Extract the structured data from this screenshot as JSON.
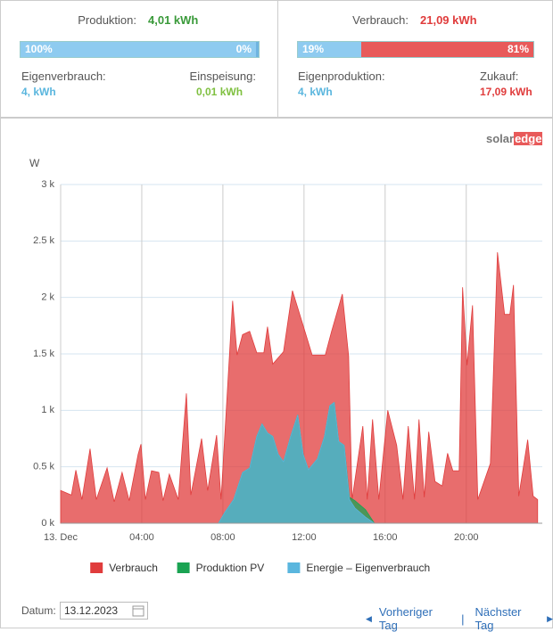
{
  "summary": {
    "production": {
      "label": "Produktion:",
      "value": "4,01 kWh",
      "bar": [
        {
          "value": 100,
          "label": "100%"
        },
        {
          "value": 0,
          "label": "0%"
        }
      ],
      "left_label": "Eigenverbrauch:",
      "left_value": "4, kWh",
      "right_label": "Einspeisung:",
      "right_value": "0,01 kWh"
    },
    "consumption": {
      "label": "Verbrauch:",
      "value": "21,09 kWh",
      "bar": [
        {
          "value": 19,
          "label": "19%"
        },
        {
          "value": 81,
          "label": "81%"
        }
      ],
      "left_label": "Eigenproduktion:",
      "left_value": "4, kWh",
      "right_label": "Zukauf:",
      "right_value": "17,09 kWh"
    }
  },
  "logo": {
    "part1": "solar",
    "part2": "edge"
  },
  "chart_data": {
    "type": "area",
    "ylabel": "W",
    "grid": true,
    "xlim": [
      0,
      23.75
    ],
    "xticks": [
      {
        "value": 0,
        "label": "13. Dec"
      },
      {
        "value": 4,
        "label": "04:00"
      },
      {
        "value": 8,
        "label": "08:00"
      },
      {
        "value": 12,
        "label": "12:00"
      },
      {
        "value": 16,
        "label": "16:00"
      },
      {
        "value": 20,
        "label": "20:00"
      }
    ],
    "ylim": [
      0,
      3000
    ],
    "yticks": [
      {
        "value": 0,
        "label": "0 k"
      },
      {
        "value": 500,
        "label": "0.5 k"
      },
      {
        "value": 1000,
        "label": "1 k"
      },
      {
        "value": 1500,
        "label": "1.5 k"
      },
      {
        "value": 2000,
        "label": "2 k"
      },
      {
        "value": 2500,
        "label": "2.5 k"
      },
      {
        "value": 3000,
        "label": "3 k"
      }
    ],
    "series": [
      {
        "name": "Verbrauch",
        "color": "#e03c3c",
        "x": [
          0,
          0.53,
          0.75,
          1.05,
          1.45,
          1.76,
          2.29,
          2.64,
          3.03,
          3.38,
          3.82,
          3.96,
          4.18,
          4.48,
          4.84,
          5.05,
          5.36,
          5.8,
          6.2,
          6.42,
          6.95,
          7.25,
          7.69,
          7.91,
          8.48,
          8.7,
          8.97,
          9.32,
          9.67,
          10.02,
          10.2,
          10.46,
          10.99,
          11.43,
          11.96,
          12.4,
          13.05,
          13.36,
          13.89,
          14.2,
          14.37,
          14.9,
          15.12,
          15.38,
          15.69,
          16.13,
          16.57,
          16.88,
          17.14,
          17.45,
          17.67,
          17.93,
          18.15,
          18.46,
          18.81,
          19.08,
          19.34,
          19.65,
          19.82,
          20.04,
          20.31,
          20.57,
          21.19,
          21.54,
          21.89,
          22.15,
          22.33,
          22.59,
          23.03,
          23.3,
          23.52
        ],
        "values": [
          290,
          250,
          470,
          210,
          660,
          210,
          490,
          190,
          450,
          200,
          610,
          700,
          210,
          465,
          450,
          200,
          435,
          210,
          1150,
          250,
          750,
          290,
          780,
          210,
          1970,
          1490,
          1670,
          1700,
          1510,
          1510,
          1740,
          1410,
          1520,
          2060,
          1750,
          1490,
          1490,
          1700,
          2030,
          1480,
          210,
          860,
          210,
          920,
          210,
          1000,
          690,
          210,
          860,
          210,
          920,
          230,
          810,
          370,
          330,
          620,
          465,
          465,
          2090,
          1400,
          1930,
          210,
          530,
          2400,
          1850,
          1850,
          2110,
          240,
          740,
          240,
          210
        ]
      },
      {
        "name": "Produktion PV",
        "color": "#1aa352",
        "x": [
          7.78,
          8.09,
          8.53,
          8.97,
          9.32,
          9.67,
          9.93,
          10.2,
          10.46,
          10.73,
          10.99,
          11.34,
          11.69,
          11.96,
          12.22,
          12.66,
          13.01,
          13.27,
          13.49,
          13.71,
          13.98,
          14.24,
          14.51,
          15.03,
          15.47
        ],
        "values": [
          0,
          95,
          210,
          450,
          490,
          770,
          880,
          800,
          770,
          610,
          545,
          770,
          960,
          610,
          475,
          570,
          770,
          1040,
          1070,
          725,
          690,
          230,
          200,
          120,
          0
        ]
      },
      {
        "name": "Energie – Eigenverbrauch",
        "color": "#5ab6de",
        "x": [
          7.78,
          8.09,
          8.53,
          8.97,
          9.32,
          9.67,
          9.93,
          10.2,
          10.46,
          10.73,
          10.99,
          11.34,
          11.69,
          11.96,
          12.22,
          12.66,
          13.01,
          13.27,
          13.49,
          13.71,
          13.98,
          14.24,
          14.51,
          15.03,
          15.47
        ],
        "values": [
          0,
          95,
          210,
          450,
          490,
          770,
          880,
          800,
          770,
          610,
          545,
          770,
          960,
          610,
          475,
          570,
          770,
          1040,
          1070,
          725,
          690,
          210,
          135,
          55,
          0
        ]
      }
    ]
  },
  "footer": {
    "date_label": "Datum:",
    "date": "13.12.2023",
    "prev": "Vorheriger Tag",
    "separator": "|",
    "next": "Nächster Tag"
  }
}
